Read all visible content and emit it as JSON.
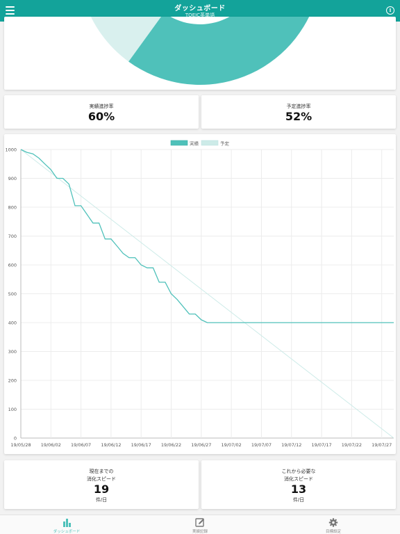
{
  "header": {
    "title": "ダッシュボード",
    "subtitle": "TOEIC英単語",
    "menu_icon": "hamburger-menu-icon",
    "info_icon": "info-icon",
    "info_glyph": "i"
  },
  "donut": {
    "actual_fraction": 0.6,
    "colors": {
      "actual": "#4fc1ba",
      "remaining": "#d9f0ee"
    }
  },
  "stats": {
    "actual_rate": {
      "label": "実績進捗率",
      "value": "60%"
    },
    "planned_rate": {
      "label": "予定進捗率",
      "value": "52%"
    }
  },
  "speed": {
    "current": {
      "label_line1": "現在までの",
      "label_line2": "消化スピード",
      "value": "19",
      "unit": "件/日"
    },
    "required": {
      "label_line1": "これから必要な",
      "label_line2": "消化スピード",
      "value": "13",
      "unit": "件/日"
    }
  },
  "chart_data": {
    "type": "line",
    "title": "",
    "xlabel": "",
    "ylabel": "",
    "ylim": [
      0,
      1000
    ],
    "y_ticks": [
      "0",
      "100",
      "200",
      "300",
      "400",
      "500",
      "600",
      "700",
      "800",
      "900",
      "1000"
    ],
    "x_tick_labels": [
      "19/05/28",
      "19/06/02",
      "19/06/07",
      "19/06/12",
      "19/06/17",
      "19/06/22",
      "19/06/27",
      "19/07/02",
      "19/07/07",
      "19/07/12",
      "19/07/17",
      "19/07/22",
      "19/07/27"
    ],
    "x_range_days": [
      0,
      62
    ],
    "grid": true,
    "legend_position": "top",
    "series": [
      {
        "name": "実績",
        "color": "#4fc1ba",
        "points": [
          [
            0,
            1000
          ],
          [
            1,
            990
          ],
          [
            2,
            985
          ],
          [
            3,
            970
          ],
          [
            4,
            950
          ],
          [
            5,
            930
          ],
          [
            6,
            900
          ],
          [
            7,
            900
          ],
          [
            8,
            880
          ],
          [
            9,
            805
          ],
          [
            10,
            805
          ],
          [
            11,
            775
          ],
          [
            12,
            745
          ],
          [
            13,
            745
          ],
          [
            14,
            690
          ],
          [
            15,
            690
          ],
          [
            16,
            665
          ],
          [
            17,
            640
          ],
          [
            18,
            625
          ],
          [
            19,
            625
          ],
          [
            20,
            600
          ],
          [
            21,
            590
          ],
          [
            22,
            590
          ],
          [
            23,
            540
          ],
          [
            24,
            540
          ],
          [
            25,
            500
          ],
          [
            26,
            480
          ],
          [
            27,
            455
          ],
          [
            28,
            430
          ],
          [
            29,
            430
          ],
          [
            30,
            410
          ],
          [
            31,
            400
          ],
          [
            32,
            400
          ],
          [
            62,
            400
          ]
        ]
      },
      {
        "name": "予定",
        "color": "#cdebe8",
        "points": [
          [
            0,
            1000
          ],
          [
            62,
            0
          ]
        ]
      }
    ]
  },
  "tabbar": [
    {
      "label": "ダッシュボード",
      "icon": "bar-chart-icon",
      "active": true
    },
    {
      "label": "実績記録",
      "icon": "edit-icon",
      "active": false
    },
    {
      "label": "目標設定",
      "icon": "gear-icon",
      "active": false
    }
  ]
}
